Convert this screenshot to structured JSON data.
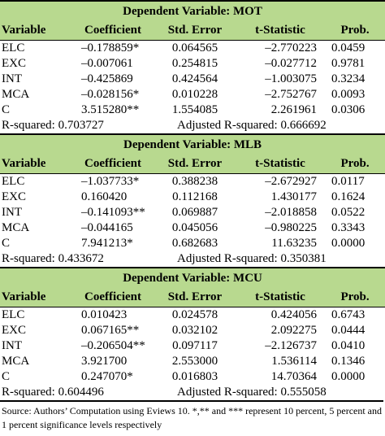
{
  "panels": [
    {
      "title": "Dependent Variable: MOT",
      "header": [
        "Variable",
        "Coefficient",
        "Std. Error",
        "t-Statistic",
        "Prob."
      ],
      "rows": [
        [
          "ELC",
          "–0.178859*",
          "0.064565",
          "–2.770223",
          "0.0459"
        ],
        [
          "EXC",
          "–0.007061",
          "0.254815",
          "–0.027712",
          "0.9781"
        ],
        [
          "INT",
          "–0.425869",
          "0.424564",
          "–1.003075",
          "0.3234"
        ],
        [
          "MCA",
          "–0.028156*",
          "0.010228",
          "–2.752767",
          "0.0093"
        ],
        [
          "C",
          "3.515280**",
          "1.554085",
          "2.261961",
          "0.0306"
        ]
      ],
      "r_squared": "R-squared: 0.703727",
      "adjusted_r_squared": "Adjusted R-squared: 0.666692"
    },
    {
      "title": "Dependent Variable: MLB",
      "header": [
        "Variable",
        "Coefficient",
        "Std. Error",
        "t-Statistic",
        "Prob."
      ],
      "rows": [
        [
          "ELC",
          "–1.037733*",
          "0.388238",
          "–2.672927",
          "0.0117"
        ],
        [
          "EXC",
          "0.160420",
          "0.112168",
          "1.430177",
          "0.1624"
        ],
        [
          "INT",
          "–0.141093**",
          "0.069887",
          "–2.018858",
          "0.0522"
        ],
        [
          "MCA",
          "–0.044165",
          "0.045056",
          "–0.980225",
          "0.3343"
        ],
        [
          "C",
          "7.941213*",
          "0.682683",
          "11.63235",
          "0.0000"
        ]
      ],
      "r_squared": "R-squared: 0.433672",
      "adjusted_r_squared": "Adjusted R-squared: 0.350381"
    },
    {
      "title": "Dependent Variable: MCU",
      "header": [
        "Variable",
        "Coefficient",
        "Std. Error",
        "t-Statistic",
        "Prob."
      ],
      "rows": [
        [
          "ELC",
          "0.010423",
          "0.024578",
          "0.424056",
          "0.6743"
        ],
        [
          "EXC",
          "0.067165**",
          "0.032102",
          "2.092275",
          "0.0444"
        ],
        [
          "INT",
          "–0.206504**",
          "0.097117",
          "–2.126737",
          "0.0410"
        ],
        [
          "MCA",
          "3.921700",
          "2.553000",
          "1.536114",
          "0.1346"
        ],
        [
          "C",
          "0.247070*",
          "0.016803",
          "14.70364",
          "0.0000"
        ]
      ],
      "r_squared": "R-squared: 0.604496",
      "adjusted_r_squared": "Adjusted R-squared: 0.555058"
    }
  ],
  "source": "Source: Authors’ Computation using Eviews 10. *,** and *** represent 10 percent, 5 percent and 1 percent significance levels respectively"
}
